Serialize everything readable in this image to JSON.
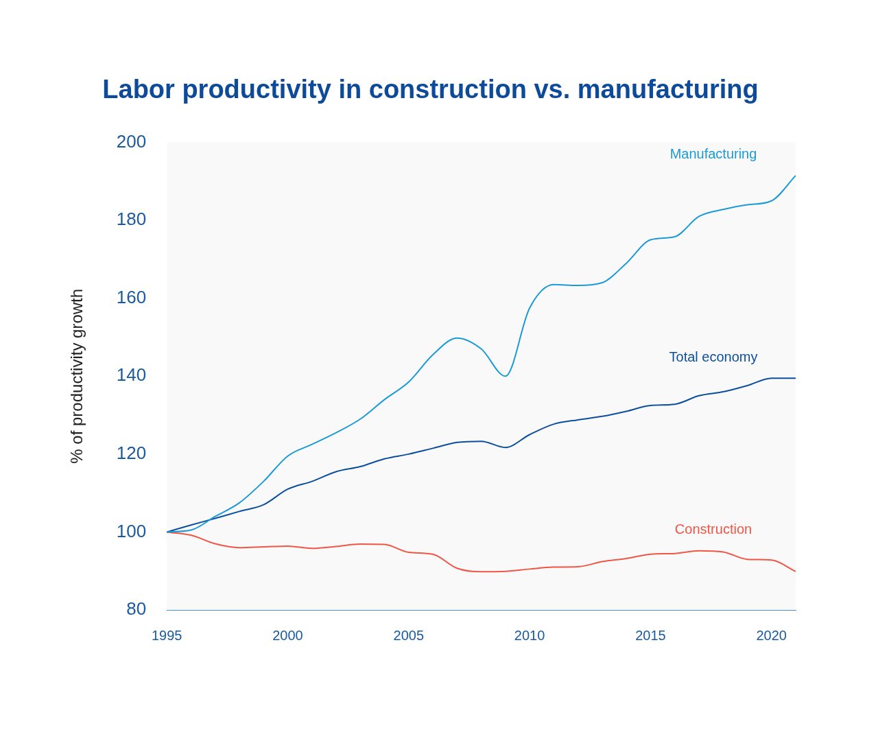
{
  "chart_data": {
    "type": "line",
    "title": "Labor productivity in construction vs. manufacturing",
    "y_label": "% of productivity growth",
    "x": [
      1995,
      1996,
      1997,
      1998,
      1999,
      2000,
      2001,
      2002,
      2003,
      2004,
      2005,
      2006,
      2007,
      2008,
      2009,
      2010,
      2011,
      2012,
      2013,
      2014,
      2015,
      2016,
      2017,
      2018,
      2019,
      2020,
      2021
    ],
    "xlim": [
      1995,
      2021
    ],
    "xticks": [
      1995,
      2000,
      2005,
      2010,
      2015,
      2020
    ],
    "ylim": [
      80,
      200
    ],
    "yticks": [
      80,
      100,
      120,
      140,
      160,
      180,
      200
    ],
    "grid": false,
    "series": [
      {
        "name": "Manufacturing",
        "color": "#1a9bd7",
        "values": [
          100,
          100.5,
          104,
          107.5,
          113,
          119.5,
          122.5,
          125.5,
          129,
          134,
          138.5,
          145.5,
          149.8,
          147,
          140,
          157.5,
          163.5,
          163.3,
          164,
          169,
          175,
          175.8,
          181,
          182.8,
          184,
          185,
          191.5
        ]
      },
      {
        "name": "Total economy",
        "color": "#0b4f9c",
        "values": [
          100,
          101.8,
          103.5,
          105.3,
          107,
          111,
          113,
          115.5,
          116.8,
          118.8,
          120,
          121.5,
          123,
          123.3,
          121.7,
          125,
          127.7,
          128.8,
          129.7,
          131,
          132.5,
          132.8,
          135,
          136,
          137.6,
          139.5,
          139.5
        ]
      },
      {
        "name": "Construction",
        "color": "#f05545",
        "values": [
          100,
          99.2,
          97,
          96,
          96.2,
          96.4,
          95.8,
          96.3,
          96.9,
          96.8,
          94.8,
          94.3,
          90.7,
          89.8,
          89.9,
          90.5,
          91,
          91.1,
          92.4,
          93.2,
          94.3,
          94.5,
          95.2,
          94.9,
          93,
          92.8,
          89.9
        ]
      }
    ]
  }
}
